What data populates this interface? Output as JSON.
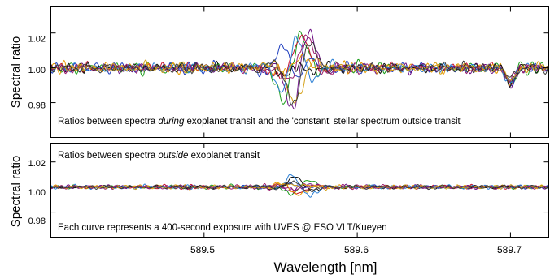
{
  "chart_data": [
    {
      "type": "line",
      "panel": "top",
      "ylabel": "Spectral ratio",
      "ylim": [
        0.96,
        1.035
      ],
      "xlim": [
        589.4,
        589.725
      ],
      "yticks": [
        0.98,
        1.0,
        1.02
      ],
      "ytick_labels": [
        "0.98",
        "1.00",
        "1.02"
      ],
      "xticks": [
        589.5,
        589.6,
        589.7
      ],
      "annotation": {
        "before": "Ratios between spectra ",
        "emph": "during",
        "after": " exoplanet transit and the 'constant' stellar spectrum outside transit"
      },
      "central_feature": {
        "x": 589.56,
        "max_amplitude": 0.032
      },
      "secondary_feature": {
        "x": 589.7,
        "max_depth": 0.012
      },
      "series_colors": [
        "#1b9e1b",
        "#c8102e",
        "#1f3fbf",
        "#6a0d83",
        "#e69a00",
        "#111111",
        "#2a7fd4",
        "#9b1b6e",
        "#d4a017",
        "#3a3a3a"
      ]
    },
    {
      "type": "line",
      "panel": "bottom",
      "ylabel": "Spectral ratio",
      "xlabel": "Wavelength [nm]",
      "ylim": [
        0.96,
        1.035
      ],
      "xlim": [
        589.4,
        589.725
      ],
      "yticks": [
        0.98,
        1.0,
        1.02
      ],
      "ytick_labels": [
        "0.98",
        "1.00",
        "1.02"
      ],
      "xticks": [
        589.5,
        589.6,
        589.7
      ],
      "xtick_labels": [
        "589.5",
        "589.6",
        "589.7"
      ],
      "annotation_top": {
        "before": "Ratios between spectra ",
        "emph": "outside",
        "after": " exoplanet transit"
      },
      "annotation_bottom": "Each curve represents a 400-second exposure with UVES @ ESO VLT/Kueyen",
      "central_feature": {
        "x": 589.56,
        "max_amplitude": 0.009
      },
      "series_colors": [
        "#1b9e1b",
        "#c8102e",
        "#1f3fbf",
        "#6a0d83",
        "#e69a00",
        "#111111",
        "#2a7fd4",
        "#9b1b6e",
        "#d4a017",
        "#3a3a3a"
      ]
    }
  ]
}
